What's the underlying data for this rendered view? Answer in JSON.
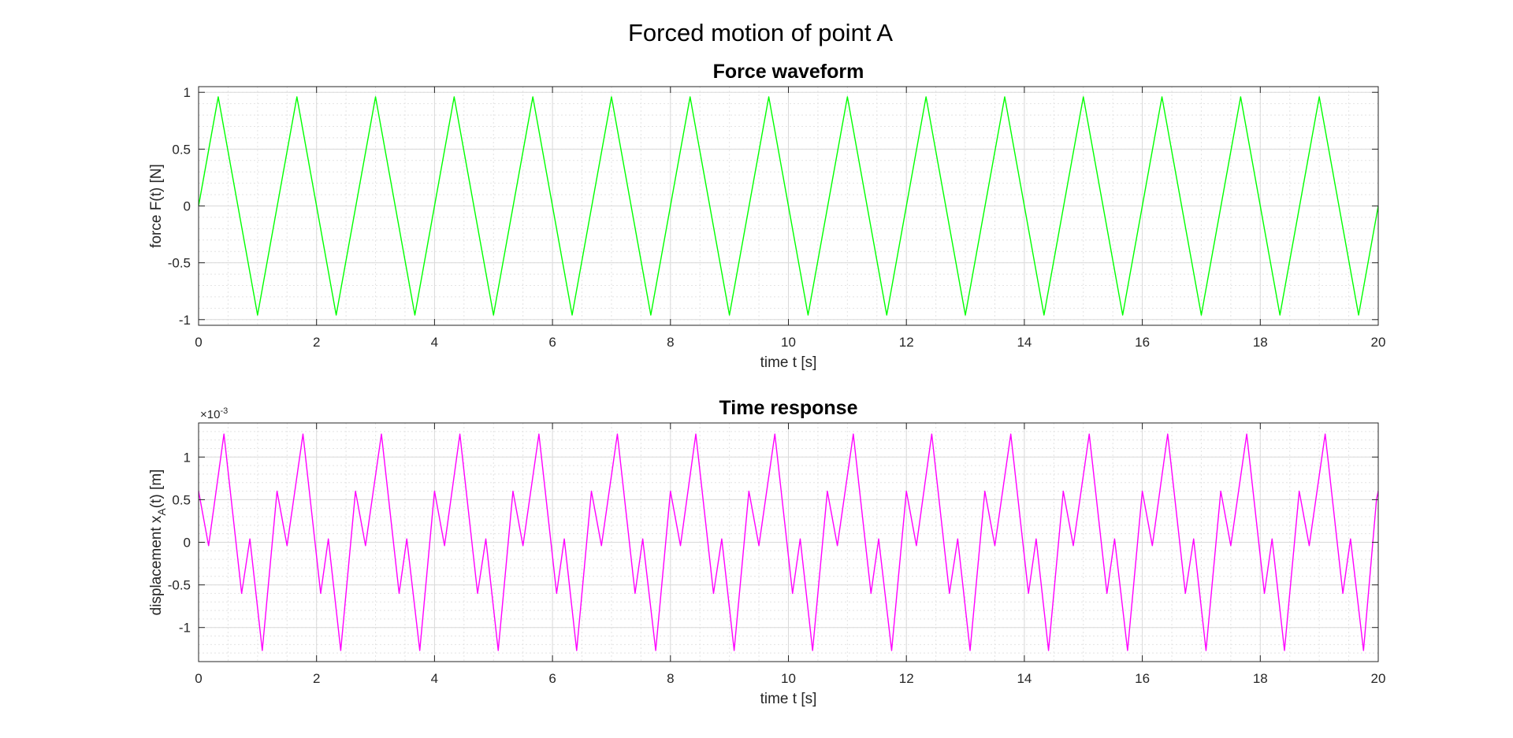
{
  "figure": {
    "title": "Forced motion of point A"
  },
  "chart_data": [
    {
      "type": "line",
      "title": "Force waveform",
      "xlabel": "time t [s]",
      "ylabel": "force F(t)   [N]",
      "xlim": [
        0,
        20
      ],
      "ylim": [
        -1.05,
        1.05
      ],
      "xticks": [
        0,
        2,
        4,
        6,
        8,
        10,
        12,
        14,
        16,
        18,
        20
      ],
      "yticks": [
        -1,
        -0.5,
        0,
        0.5,
        1
      ],
      "ytick_labels": [
        "-1",
        "-0.5",
        "0",
        "0.5",
        "1"
      ],
      "grid": true,
      "minor_grid": true,
      "exponent_label": "",
      "color": "#00ff00",
      "series": [
        {
          "x": [
            0,
            0.333,
            1.0,
            1.667,
            2.333,
            3.0,
            3.667,
            4.333,
            5.0,
            5.667,
            6.333,
            7.0,
            7.667,
            8.333,
            9.0,
            9.667,
            10.333,
            11.0,
            11.667,
            12.333,
            13.0,
            13.667,
            14.333,
            15.0,
            15.667,
            16.333,
            17.0,
            17.667,
            18.333,
            19.0,
            19.667,
            20.0
          ],
          "y": [
            0,
            0.96,
            -0.96,
            0.96,
            -0.96,
            0.96,
            -0.96,
            0.96,
            -0.96,
            0.96,
            -0.96,
            0.96,
            -0.96,
            0.96,
            -0.96,
            0.96,
            -0.96,
            0.96,
            -0.96,
            0.96,
            -0.96,
            0.96,
            -0.96,
            0.96,
            -0.96,
            0.96,
            -0.96,
            0.96,
            -0.96,
            0.96,
            -0.96,
            0
          ]
        }
      ]
    },
    {
      "type": "line",
      "title": "Time response",
      "xlabel": "time t [s]",
      "ylabel": "displacement x",
      "ylabel_sub": "A",
      "ylabel_suffix": "(t)   [m]",
      "xlim": [
        0,
        20
      ],
      "ylim": [
        -1.4,
        1.4
      ],
      "xticks": [
        0,
        2,
        4,
        6,
        8,
        10,
        12,
        14,
        16,
        18,
        20
      ],
      "yticks": [
        -1,
        -0.5,
        0,
        0.5,
        1
      ],
      "ytick_labels": [
        "-1",
        "-0.5",
        "0",
        "0.5",
        "1"
      ],
      "grid": true,
      "minor_grid": true,
      "exponent_label": "×10",
      "exponent_power": "-3",
      "color": "#ff00ff",
      "series": [
        {
          "x": [
            0,
            0.17,
            0.43,
            0.73,
            0.87,
            1.08,
            1.33,
            1.5,
            1.77,
            2.07,
            2.2,
            2.41,
            2.66,
            2.83,
            3.1,
            3.4,
            3.53,
            3.75,
            4.0,
            4.17,
            4.43,
            4.73,
            4.87,
            5.08,
            5.33,
            5.5,
            5.77,
            6.07,
            6.2,
            6.41,
            6.66,
            6.83,
            7.1,
            7.4,
            7.53,
            7.75,
            8.0,
            8.17,
            8.43,
            8.73,
            8.87,
            9.08,
            9.33,
            9.5,
            9.77,
            10.07,
            10.2,
            10.41,
            10.66,
            10.83,
            11.1,
            11.4,
            11.53,
            11.75,
            12.0,
            12.17,
            12.43,
            12.73,
            12.87,
            13.08,
            13.33,
            13.5,
            13.77,
            14.07,
            14.2,
            14.41,
            14.66,
            14.83,
            15.1,
            15.4,
            15.53,
            15.75,
            16.0,
            16.17,
            16.43,
            16.73,
            16.87,
            17.08,
            17.33,
            17.5,
            17.77,
            18.07,
            18.2,
            18.41,
            18.66,
            18.83,
            19.1,
            19.4,
            19.53,
            19.75,
            19.97,
            20.0
          ],
          "y": [
            0.6,
            -0.04,
            1.27,
            -0.6,
            0.04,
            -1.27,
            0.6,
            -0.04,
            1.27,
            -0.6,
            0.04,
            -1.27,
            0.6,
            -0.04,
            1.27,
            -0.6,
            0.04,
            -1.27,
            0.6,
            -0.04,
            1.27,
            -0.6,
            0.04,
            -1.27,
            0.6,
            -0.04,
            1.27,
            -0.6,
            0.04,
            -1.27,
            0.6,
            -0.04,
            1.27,
            -0.6,
            0.04,
            -1.27,
            0.6,
            -0.04,
            1.27,
            -0.6,
            0.04,
            -1.27,
            0.6,
            -0.04,
            1.27,
            -0.6,
            0.04,
            -1.27,
            0.6,
            -0.04,
            1.27,
            -0.6,
            0.04,
            -1.27,
            0.6,
            -0.04,
            1.27,
            -0.6,
            0.04,
            -1.27,
            0.6,
            -0.04,
            1.27,
            -0.6,
            0.04,
            -1.27,
            0.6,
            -0.04,
            1.27,
            -0.6,
            0.04,
            -1.27,
            0.6,
            -0.04,
            1.27,
            -0.6,
            0.04,
            -1.27,
            0.6,
            -0.04,
            1.27,
            -0.6,
            0.04,
            -1.27,
            0.6,
            -0.04,
            1.27,
            -0.6,
            0.04,
            -1.27,
            0.5,
            0.6
          ]
        }
      ]
    }
  ]
}
